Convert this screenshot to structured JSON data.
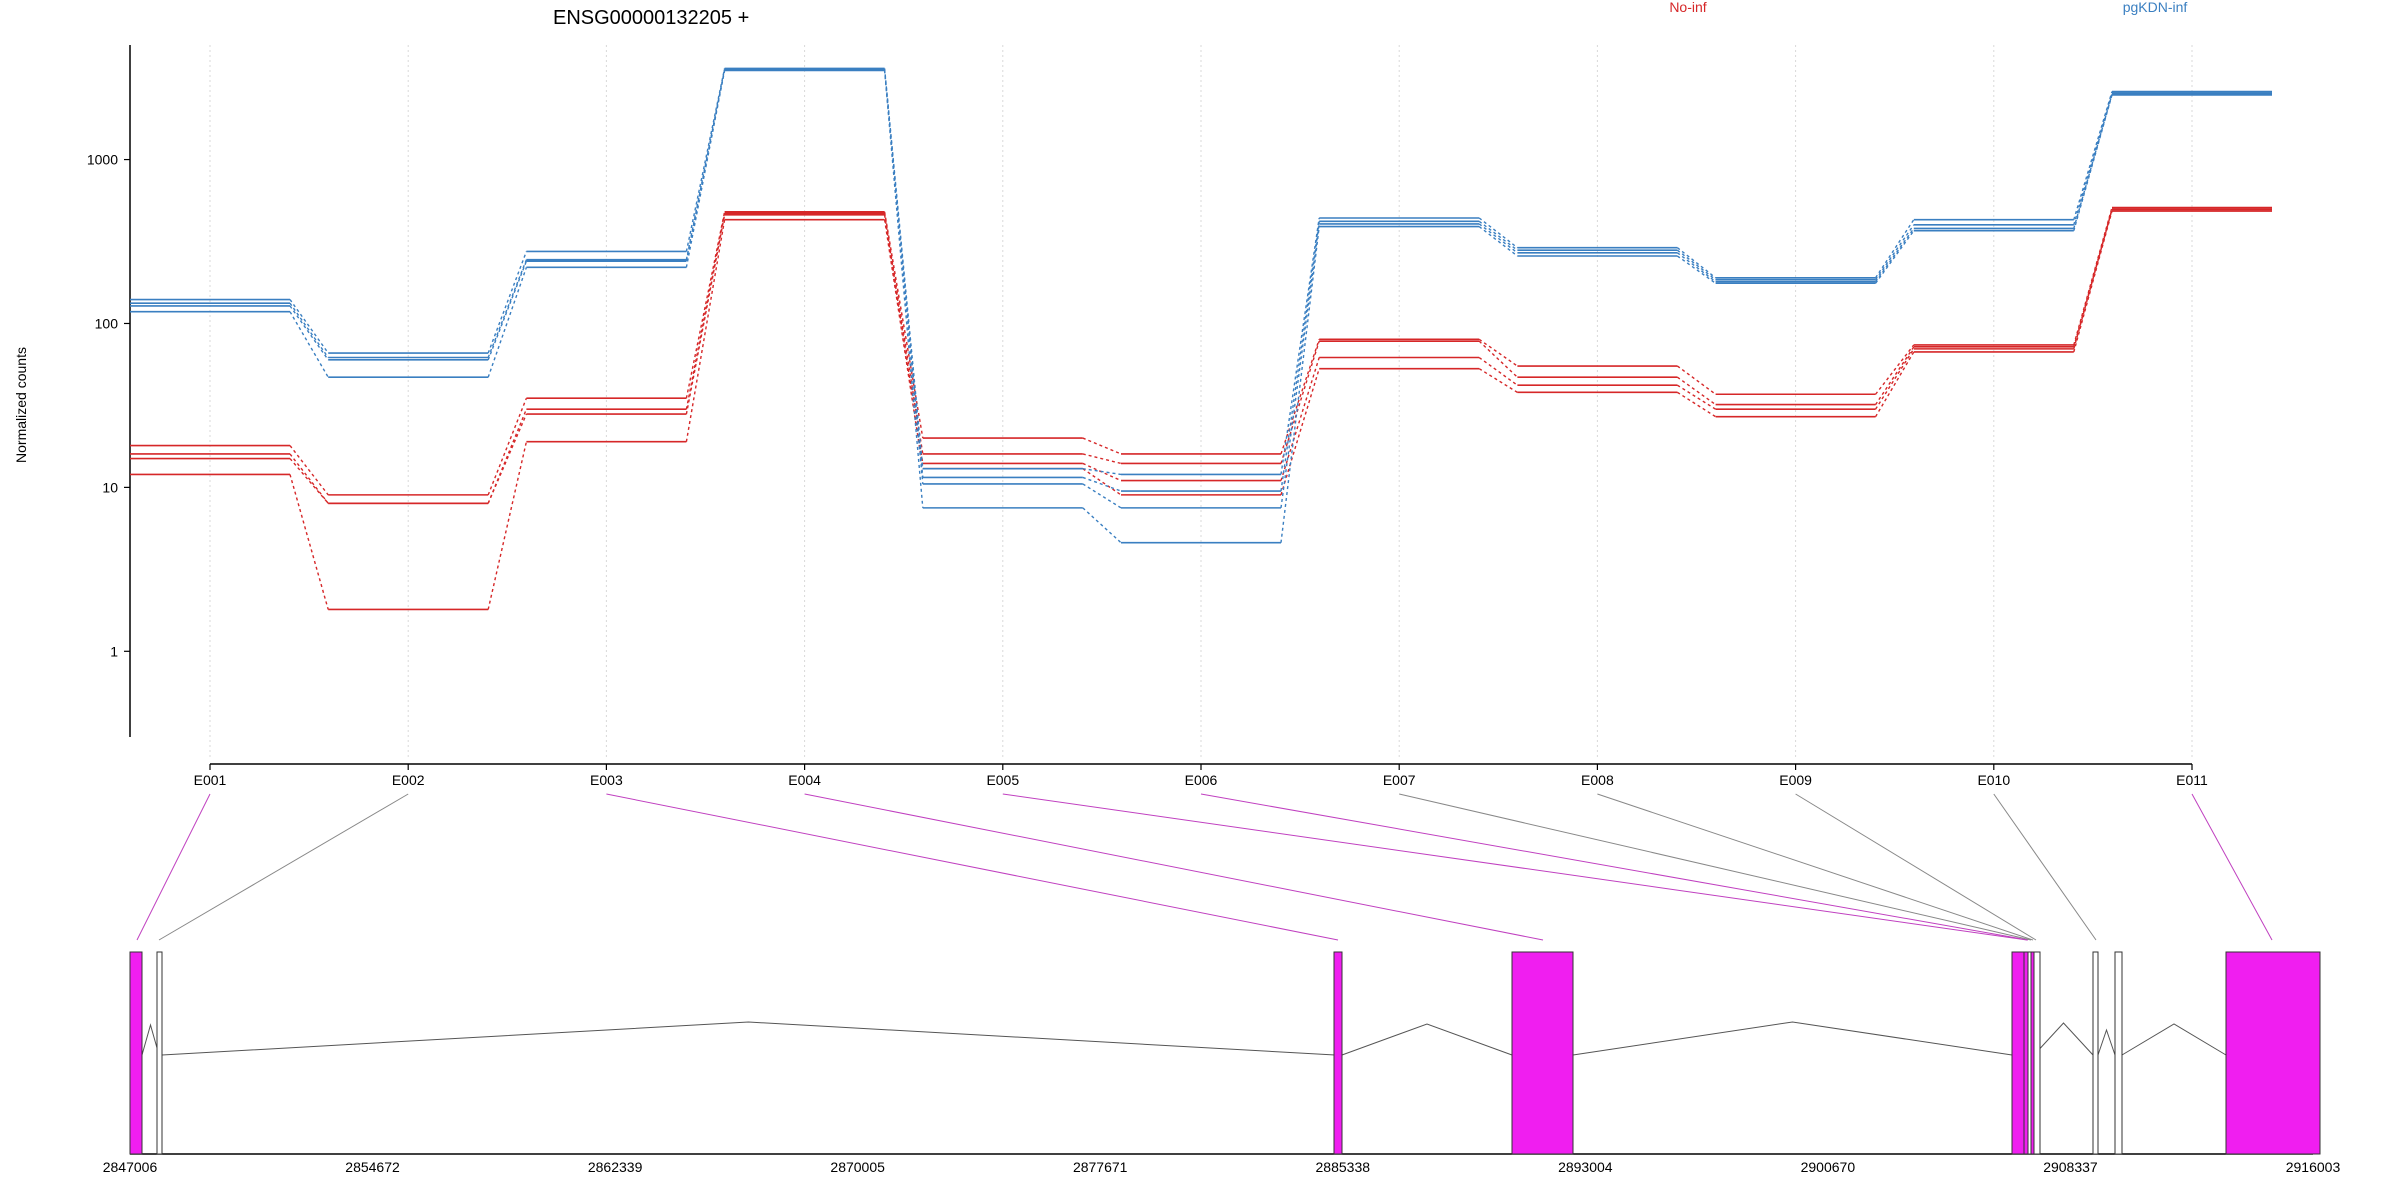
{
  "chart_data": {
    "type": "line",
    "title": "ENSG00000132205 +",
    "ylabel": "Normalized counts",
    "xlabel": "",
    "y_scale": "log",
    "ylim": [
      0.3,
      5000
    ],
    "y_ticks": [
      1,
      10,
      100,
      1000
    ],
    "y_tick_labels": [
      "1",
      "10",
      "100",
      "1000"
    ],
    "grid": "vertical dotted lines at each exon",
    "legend": {
      "placement": "top-right",
      "entries": [
        {
          "name": "No-inf",
          "color": "#d62728"
        },
        {
          "name": "pgKDN-inf",
          "color": "#3a7fc1"
        }
      ]
    },
    "categories": [
      "E001",
      "E002",
      "E003",
      "E004",
      "E005",
      "E006",
      "E007",
      "E008",
      "E009",
      "E010",
      "E011"
    ],
    "groups": [
      {
        "group": "No-inf",
        "color": "#d62728",
        "samples": [
          [
            18,
            9,
            35,
            480,
            20,
            16,
            80,
            55,
            37,
            74,
            510
          ],
          [
            16,
            8,
            30,
            470,
            16,
            14,
            78,
            47,
            32,
            72,
            500
          ],
          [
            15,
            8,
            28,
            460,
            14,
            11,
            62,
            42,
            30,
            70,
            495
          ],
          [
            12,
            1.8,
            19,
            430,
            13,
            9,
            53,
            38,
            27,
            67,
            485
          ]
        ]
      },
      {
        "group": "pgKDN-inf",
        "color": "#3a7fc1",
        "samples": [
          [
            140,
            66,
            275,
            3600,
            13,
            12,
            440,
            290,
            190,
            430,
            2600
          ],
          [
            133,
            62,
            245,
            3550,
            11.5,
            9.5,
            420,
            280,
            185,
            400,
            2550
          ],
          [
            128,
            60,
            240,
            3520,
            10.5,
            7.5,
            405,
            270,
            180,
            380,
            2500
          ],
          [
            118,
            47,
            220,
            3500,
            7.5,
            4.6,
            390,
            258,
            176,
            368,
            2480
          ]
        ]
      }
    ],
    "exon_lines": [
      "magenta",
      "grey",
      "magenta",
      "magenta",
      "magenta",
      "magenta",
      "grey",
      "grey",
      "grey",
      "grey",
      "magenta"
    ],
    "gene_model": {
      "genomic_range": [
        2847006,
        2916003
      ],
      "ticks": [
        2847006,
        2854672,
        2862339,
        2870005,
        2877671,
        2885338,
        2893004,
        2900670,
        2908337,
        2916003
      ],
      "tick_labels": [
        "2847006",
        "2854672",
        "2862339",
        "2870005",
        "2877671",
        "2885338",
        "2893004",
        "2900670",
        "2908337",
        "2916003"
      ],
      "colors": {
        "tested": "#f01ef0",
        "untested": "#ffffff",
        "connector": "#808080"
      }
    }
  }
}
